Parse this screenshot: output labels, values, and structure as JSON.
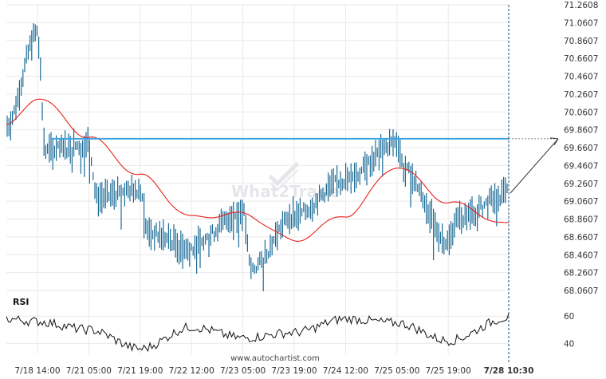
{
  "watermark": {
    "logo_icon": "what2trade-check-icon",
    "text": "What2Trade"
  },
  "footer": {
    "text": "www.autochartist.com"
  },
  "chart_data": {
    "type": "bar",
    "title": "",
    "colors": {
      "bars": "#1a6b96",
      "moving_average": "#e8221b",
      "resistance": "#3aa3e3",
      "rsi_line": "#111111",
      "projection": "#333333",
      "grid": "#e9e9e9"
    },
    "y_ticks": [
      "71.2608",
      "71.0607",
      "70.8607",
      "70.6607",
      "70.4607",
      "70.2607",
      "70.0607",
      "69.8607",
      "69.6607",
      "69.4607",
      "69.2607",
      "69.0607",
      "68.8607",
      "68.6607",
      "68.4607",
      "68.2607",
      "68.0607"
    ],
    "ylim": [
      68.0607,
      71.2608
    ],
    "x_ticks": [
      "7/18 14:00",
      "7/21 05:00",
      "7/21 19:00",
      "7/22 12:00",
      "7/23 05:00",
      "7/23 19:00",
      "7/24 12:00",
      "7/25 05:00",
      "7/25 19:00",
      "7/28 10:30"
    ],
    "resistance_level": 69.76,
    "resistance_start_tick": "7/18 14:00",
    "projection_target": 69.76,
    "price_anchors": [
      {
        "x": "start",
        "y": 69.9
      },
      {
        "x": "7/18 14:00",
        "y": 70.95
      },
      {
        "x": "7/18 14:00 +",
        "y": 69.62
      },
      {
        "x": "7/21 05:00",
        "y": 69.7
      },
      {
        "x": "7/21 05:00 +",
        "y": 69.1
      },
      {
        "x": "7/21 19:00",
        "y": 69.2
      },
      {
        "x": "7/21 19:00 +",
        "y": 68.7
      },
      {
        "x": "7/22 12:00",
        "y": 68.55
      },
      {
        "x": "7/23 05:00",
        "y": 68.95
      },
      {
        "x": "7/23 05:00 +",
        "y": 68.3
      },
      {
        "x": "7/23 19:00",
        "y": 68.9
      },
      {
        "x": "7/24 12:00",
        "y": 69.3
      },
      {
        "x": "7/25 05:00",
        "y": 69.72
      },
      {
        "x": "7/25 05:00 +",
        "y": 69.4
      },
      {
        "x": "7/25 19:00",
        "y": 68.6
      },
      {
        "x": "7/25 19:00 +",
        "y": 68.85
      },
      {
        "x": "7/28 10:30",
        "y": 69.15
      }
    ],
    "moving_average_anchors": [
      {
        "x": "start",
        "y": 69.9
      },
      {
        "x": "7/18 14:00",
        "y": 70.22
      },
      {
        "x": "7/21 05:00",
        "y": 69.78
      },
      {
        "x": "7/21 19:00",
        "y": 69.35
      },
      {
        "x": "7/22 12:00",
        "y": 68.88
      },
      {
        "x": "7/23 05:00",
        "y": 68.92
      },
      {
        "x": "7/23 19:00",
        "y": 68.62
      },
      {
        "x": "7/24 12:00",
        "y": 68.9
      },
      {
        "x": "7/25 05:00",
        "y": 69.45
      },
      {
        "x": "7/25 19:00",
        "y": 69.05
      },
      {
        "x": "7/28 10:30",
        "y": 68.8
      }
    ],
    "rsi": {
      "label": "RSI",
      "ticks": [
        "60",
        "40"
      ],
      "ylim": [
        32,
        66
      ],
      "anchors": [
        {
          "x": "start",
          "y": 58
        },
        {
          "x": "7/18 14:00",
          "y": 56
        },
        {
          "x": "7/21 05:00",
          "y": 50
        },
        {
          "x": "7/21 19:00",
          "y": 36
        },
        {
          "x": "7/22 12:00",
          "y": 52
        },
        {
          "x": "7/23 05:00",
          "y": 44
        },
        {
          "x": "7/23 19:00",
          "y": 48
        },
        {
          "x": "7/24 12:00",
          "y": 58
        },
        {
          "x": "7/25 05:00",
          "y": 55
        },
        {
          "x": "7/25 19:00",
          "y": 42
        },
        {
          "x": "7/28 10:30",
          "y": 59
        }
      ]
    }
  }
}
